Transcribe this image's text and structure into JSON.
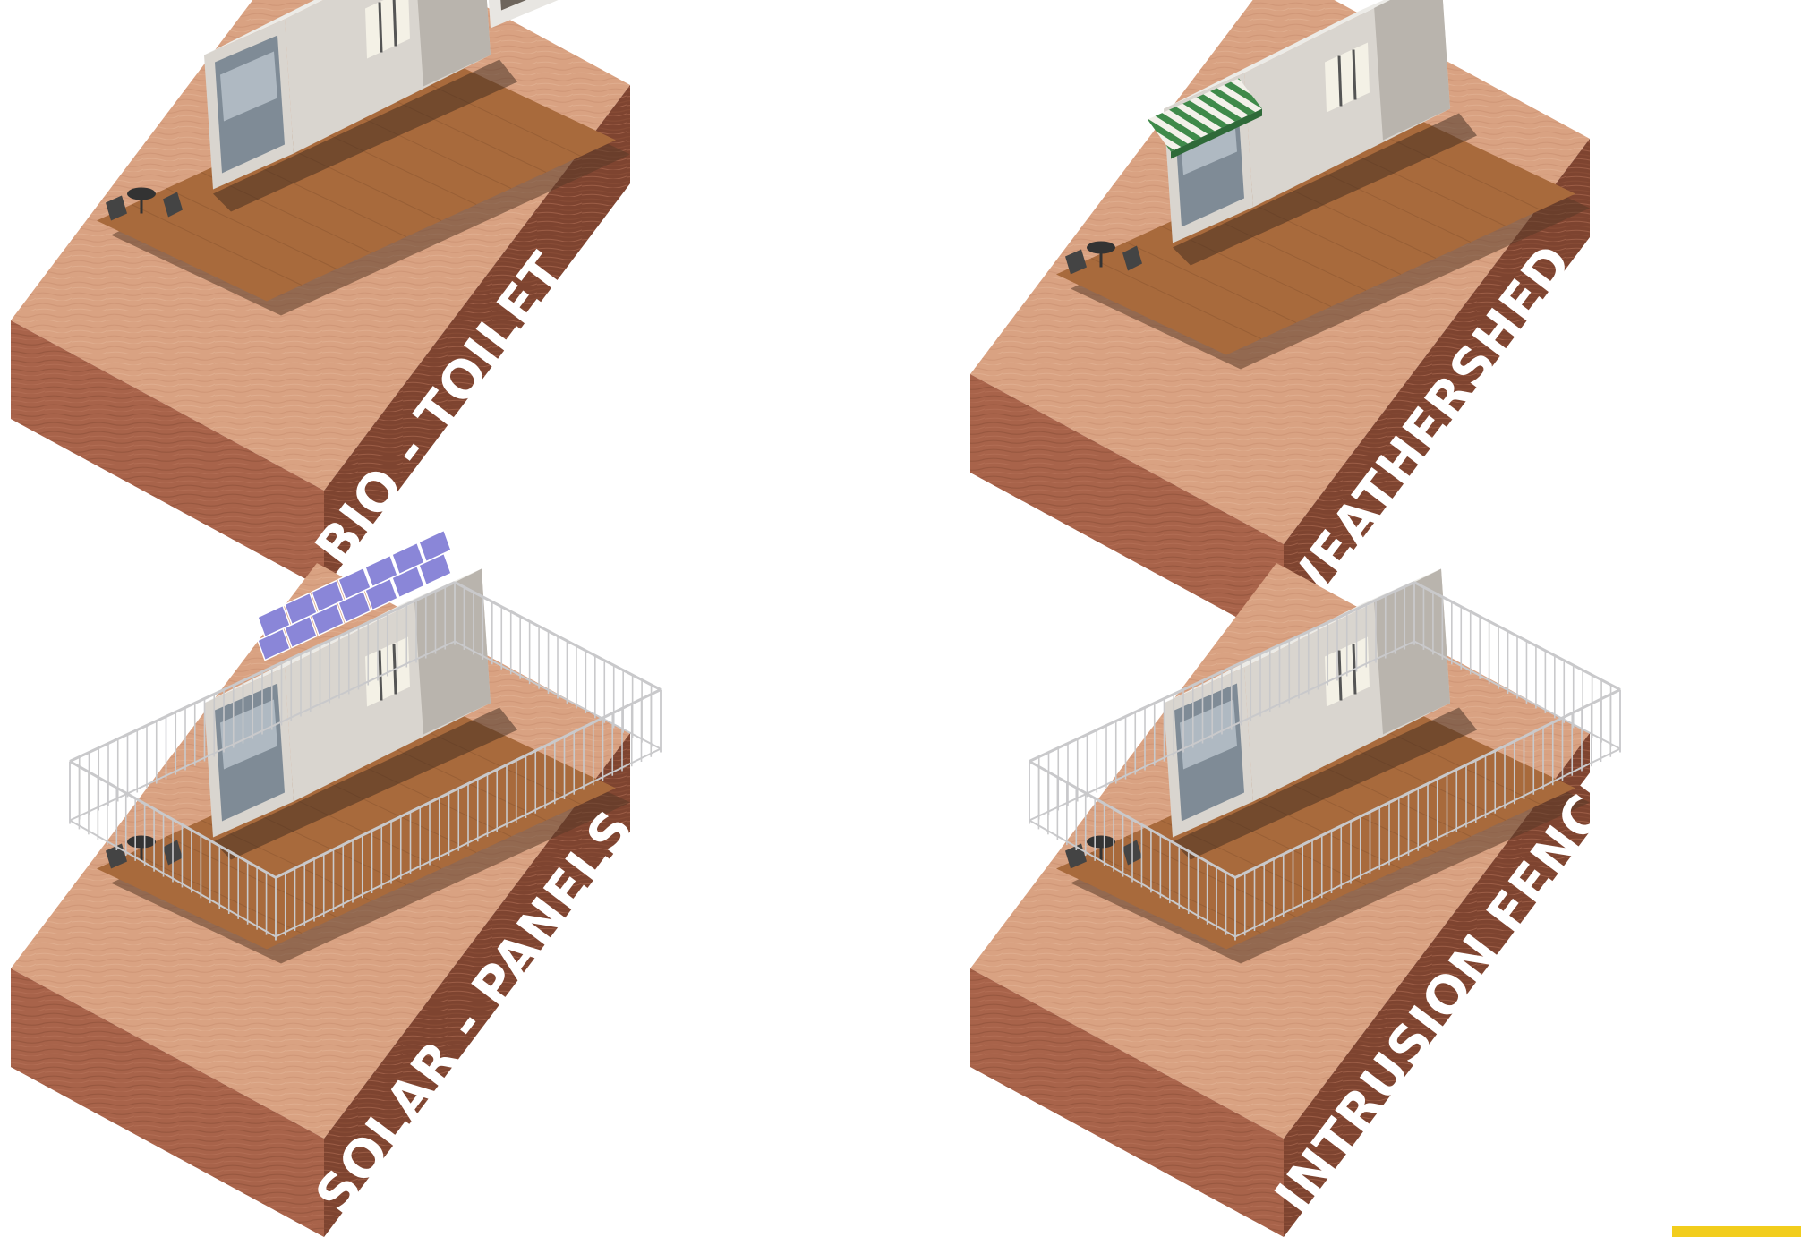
{
  "modules": [
    {
      "id": "bio-toilet",
      "label": "BIO - TOILET",
      "addon": "toilet-pod",
      "awning": false,
      "solar": false,
      "fence": false
    },
    {
      "id": "weathershed",
      "label": "WEATHERSHED",
      "addon": "none",
      "awning": true,
      "solar": false,
      "fence": false
    },
    {
      "id": "solar-panels",
      "label": "SOLAR - PANELS",
      "addon": "none",
      "awning": false,
      "solar": true,
      "fence": true
    },
    {
      "id": "intrusion-fence",
      "label": "INTRUSION FENCE",
      "addon": "none",
      "awning": false,
      "solar": false,
      "fence": true
    }
  ],
  "colors": {
    "wood_top": "#d9a282",
    "wood_front": "#a8634a",
    "wood_side": "#7e4430",
    "deck": "#a86a3c",
    "shadow": "#5a3a28",
    "pod_body": "#d9d5cf",
    "pod_roof": "#ecebe7",
    "pod_side": "#b9b4ad",
    "glass": "#7f8b96",
    "awning_green": "#3f8a4a",
    "solar": "#8a86d8",
    "fence": "#c9c9cb",
    "accent": "#f2cd1c"
  }
}
